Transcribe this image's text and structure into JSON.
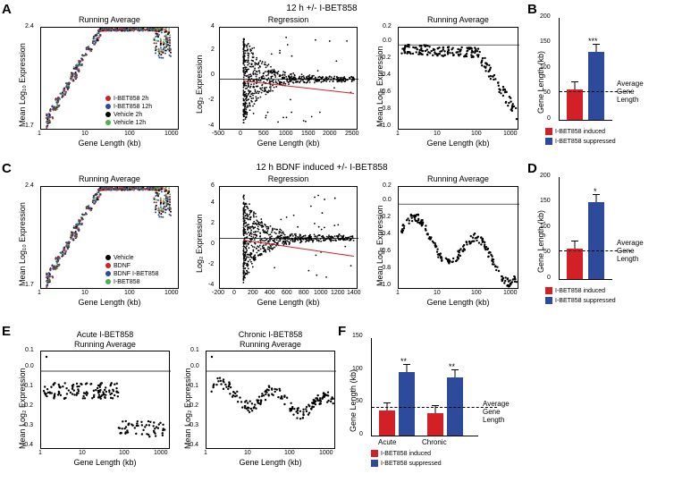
{
  "panels": {
    "A": "A",
    "B": "B",
    "C": "C",
    "D": "D",
    "E": "E",
    "F": "F"
  },
  "colors": {
    "red": "#d32027",
    "blue": "#2e4b9b",
    "black": "#000000",
    "green": "#4caf50",
    "regression": "#d32027"
  },
  "titles": {
    "runavg": "Running Average",
    "regression": "Regression",
    "top_section": "12 h +/- I-BET858",
    "c_section": "12 h BDNF induced +/- I-BET858",
    "e_acute": "Acute I-BET858",
    "e_chronic": "Chronic I-BET858"
  },
  "axis_labels": {
    "mean_log10": "Mean Log₁₀ Expression",
    "log2_expr": "Log₂ Expression",
    "mean_log2": "Mean Log₂ Expression",
    "gene_len_kb": "Gene Length (kb)",
    "gene_len_kb_y": "Gene Length (kb)"
  },
  "avg_gene_label": "Average\nGene\nLength",
  "legend_A": [
    {
      "label": "I-BET858   2h",
      "color_key": "red"
    },
    {
      "label": "I-BET858 12h",
      "color_key": "blue"
    },
    {
      "label": "Vehicle     2h",
      "color_key": "black"
    },
    {
      "label": "Vehicle   12h",
      "color_key": "green"
    }
  ],
  "legend_C": [
    {
      "label": "Vehicle",
      "color_key": "black"
    },
    {
      "label": "BDNF",
      "color_key": "red"
    },
    {
      "label": "BDNF I-BET858",
      "color_key": "blue"
    },
    {
      "label": "I-BET858",
      "color_key": "green"
    }
  ],
  "legend_BD": [
    {
      "label": "I-BET858 induced",
      "color_key": "red"
    },
    {
      "label": "I-BET858 suppressed",
      "color_key": "blue"
    }
  ],
  "bar_B": {
    "ylim": [
      0,
      200
    ],
    "yticks": [
      0,
      50,
      100,
      150,
      200
    ],
    "avg_line": 58,
    "bars": [
      {
        "value": 60,
        "color_key": "red"
      },
      {
        "value": 132,
        "color_key": "blue",
        "sig": "***"
      }
    ]
  },
  "bar_D": {
    "ylim": [
      0,
      200
    ],
    "yticks": [
      0,
      50,
      100,
      150,
      200
    ],
    "avg_line": 58,
    "bars": [
      {
        "value": 60,
        "color_key": "red"
      },
      {
        "value": 150,
        "color_key": "blue",
        "sig": "*"
      }
    ]
  },
  "bar_F": {
    "ylim": [
      0,
      150
    ],
    "yticks": [
      0,
      50,
      100,
      150
    ],
    "avg_line": 45,
    "groups": [
      "Acute",
      "Chronic"
    ],
    "bars": [
      {
        "value": 38,
        "color_key": "red",
        "group": 0
      },
      {
        "value": 97,
        "color_key": "blue",
        "group": 0,
        "sig": "**"
      },
      {
        "value": 34,
        "color_key": "red",
        "group": 1
      },
      {
        "value": 88,
        "color_key": "blue",
        "group": 1,
        "sig": "**"
      }
    ]
  },
  "chart_A1": {
    "xlim": [
      1,
      1000
    ],
    "ylim": [
      1.7,
      2.4
    ],
    "xticks": [
      "1",
      "10",
      "100",
      "1000"
    ],
    "yticks": [
      "1.7",
      "2.4"
    ],
    "xscale": "log"
  },
  "chart_A2": {
    "xlim": [
      -500,
      2500
    ],
    "ylim": [
      -4,
      4
    ],
    "xticks": [
      "-500",
      "0",
      "500",
      "1000",
      "1500",
      "2000",
      "2500"
    ],
    "yticks": [
      "-4",
      "-2",
      "0",
      "2",
      "4"
    ]
  },
  "chart_A3": {
    "xlim": [
      1,
      1000
    ],
    "ylim": [
      -1.0,
      0.2
    ],
    "xticks": [
      "1",
      "10",
      "100",
      "1000"
    ],
    "yticks": [
      "-1.0",
      "-0.8",
      "-0.6",
      "-0.4",
      "-0.2",
      "0.0",
      "0.2"
    ],
    "xscale": "log"
  },
  "chart_C1": {
    "xlim": [
      1,
      1000
    ],
    "ylim": [
      1.7,
      2.4
    ],
    "xticks": [
      "1",
      "10",
      "100",
      "1000"
    ],
    "yticks": [
      "1.7",
      "2.4"
    ],
    "xscale": "log"
  },
  "chart_C2": {
    "xlim": [
      -200,
      1400
    ],
    "ylim": [
      -4,
      6
    ],
    "xticks": [
      "-200",
      "0",
      "200",
      "400",
      "600",
      "800",
      "1000",
      "1200",
      "1400"
    ],
    "yticks": [
      "-4",
      "-2",
      "0",
      "2",
      "4",
      "6"
    ]
  },
  "chart_C3": {
    "xlim": [
      1,
      1000
    ],
    "ylim": [
      -1.0,
      0.2
    ],
    "xticks": [
      "1",
      "10",
      "100",
      "1000"
    ],
    "yticks": [
      "-1.0",
      "-0.8",
      "-0.6",
      "-0.4",
      "-0.2",
      "0.0",
      "0.2"
    ],
    "xscale": "log"
  },
  "chart_E": {
    "xlim": [
      1,
      1000
    ],
    "ylim": [
      -0.4,
      0.1
    ],
    "xticks": [
      "1",
      "10",
      "100",
      "1000"
    ],
    "yticks": [
      "-0.4",
      "-0.3",
      "-0.2",
      "-0.1",
      "0.0",
      "0.1"
    ],
    "xscale": "log"
  }
}
